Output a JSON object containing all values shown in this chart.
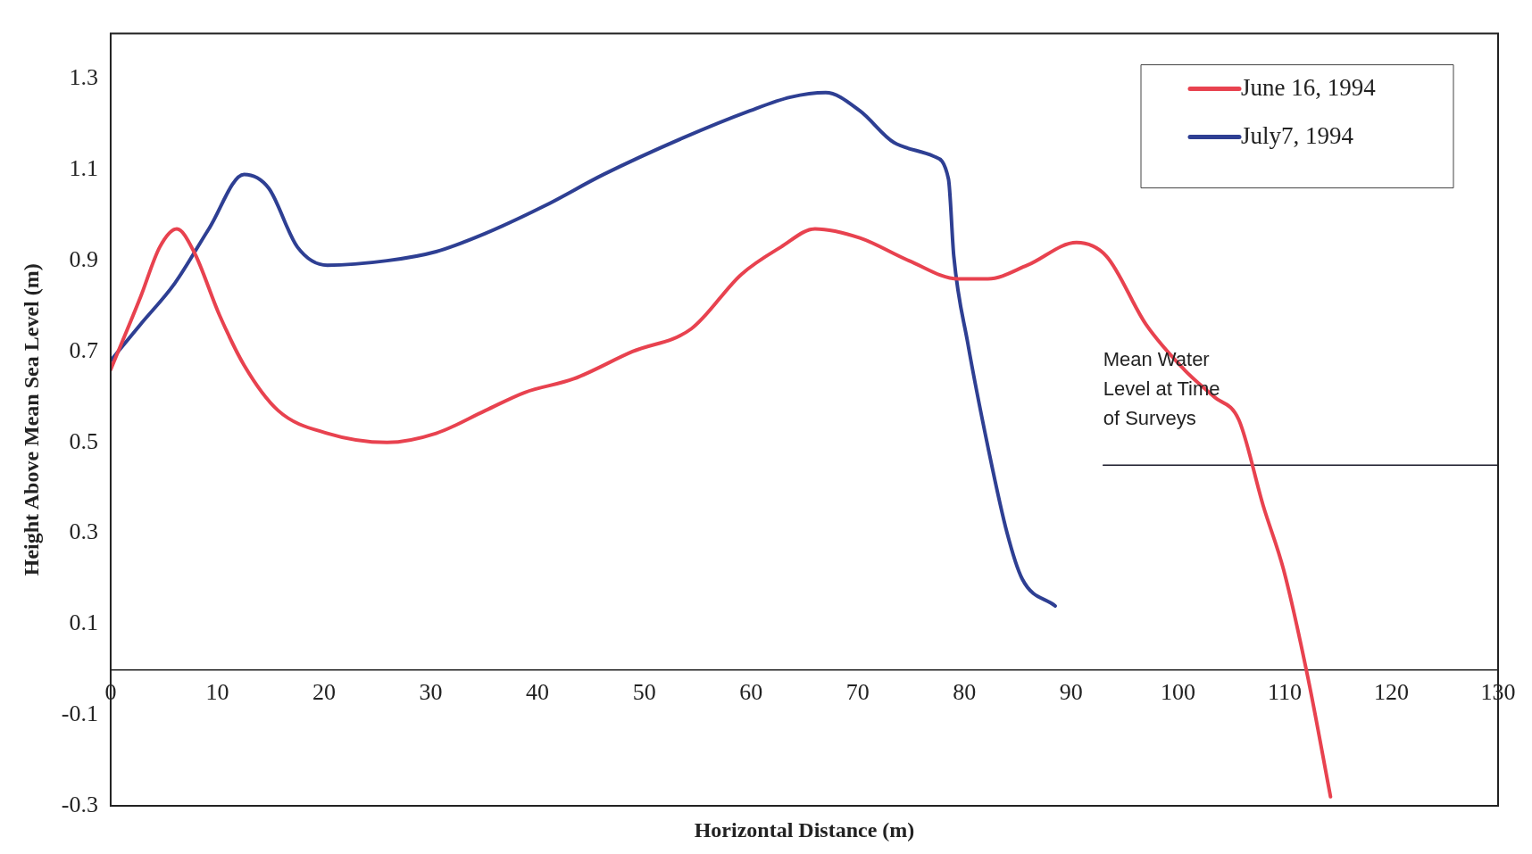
{
  "chart_data": {
    "type": "line",
    "xlabel": "Horizontal Distance (m)",
    "ylabel": "Height Above Mean Sea Level (m)",
    "xlim": [
      0,
      130
    ],
    "xticks": [
      0,
      10,
      20,
      30,
      40,
      50,
      60,
      70,
      80,
      90,
      100,
      110,
      120,
      130
    ],
    "ylim": [
      -0.3,
      1.4
    ],
    "yticks": [
      -0.3,
      -0.1,
      0.1,
      0.3,
      0.5,
      0.7,
      0.9,
      1.1,
      1.3
    ],
    "legend": "top right",
    "marker": "none",
    "line_style": "solid",
    "series": [
      {
        "name": "June 16, 1994",
        "color": "#e8424f",
        "x": [
          0,
          2.8,
          4.6,
          6.2,
          7.8,
          10.2,
          12.5,
          15.7,
          20.3,
          25.9,
          30.5,
          35.1,
          38.8,
          43.4,
          48.9,
          54.4,
          59.1,
          62.8,
          66,
          70.2,
          74.8,
          79.4,
          82.2,
          85.9,
          90.5,
          93.3,
          97,
          100.6,
          103.4,
          105.7,
          108,
          109.9,
          112.2,
          114.3
        ],
        "values": [
          0.66,
          0.82,
          0.93,
          0.97,
          0.92,
          0.78,
          0.67,
          0.57,
          0.52,
          0.5,
          0.52,
          0.57,
          0.61,
          0.64,
          0.7,
          0.75,
          0.87,
          0.93,
          0.97,
          0.95,
          0.9,
          0.86,
          0.86,
          0.89,
          0.94,
          0.91,
          0.76,
          0.66,
          0.6,
          0.55,
          0.36,
          0.22,
          -0.02,
          -0.28
        ]
      },
      {
        "name": "July7, 1994",
        "color": "#2e3f93",
        "x": [
          0,
          2.8,
          6,
          9.2,
          12.5,
          14.8,
          17.5,
          20.3,
          25.9,
          30.5,
          35.1,
          40.6,
          46.2,
          53.6,
          59.9,
          63.7,
          67,
          70.2,
          73.4,
          77.1,
          78.5,
          79,
          80.3,
          82.2,
          84,
          85.4,
          88.5
        ],
        "values": [
          0.68,
          0.76,
          0.85,
          0.97,
          1.09,
          1.06,
          0.93,
          0.89,
          0.9,
          0.92,
          0.96,
          1.02,
          1.09,
          1.17,
          1.23,
          1.26,
          1.27,
          1.23,
          1.16,
          1.13,
          1.08,
          0.91,
          0.72,
          0.49,
          0.3,
          0.2,
          0.14
        ]
      },
      {
        "type": "line",
        "color": "#1a1a2a",
        "x": [
          93,
          130
        ],
        "values": [
          0.45,
          0.45
        ]
      }
    ],
    "annotations": [
      {
        "text": "Mean Water Level at Time of Surveys",
        "x": 93,
        "y": 0.45
      }
    ]
  }
}
